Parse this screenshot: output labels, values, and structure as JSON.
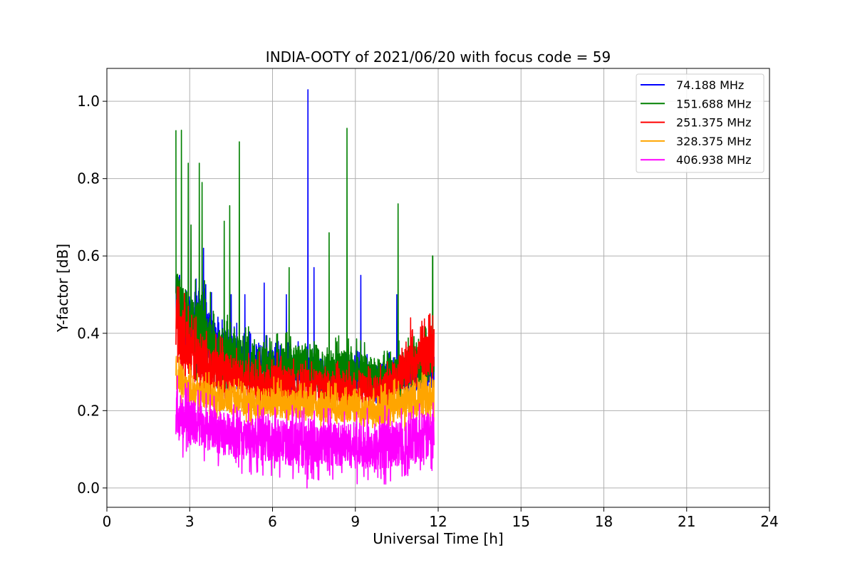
{
  "chart_data": {
    "type": "line",
    "title": "INDIA-OOTY of 2021/06/20 with focus code = 59",
    "xlabel": "Universal Time [h]",
    "ylabel": "Y-factor [dB]",
    "xlim": [
      0,
      24
    ],
    "ylim": [
      -0.05,
      1.085
    ],
    "xticks": [
      0,
      3,
      6,
      9,
      12,
      15,
      18,
      21,
      24
    ],
    "xtick_labels": [
      "0",
      "3",
      "6",
      "9",
      "12",
      "15",
      "18",
      "21",
      "24"
    ],
    "yticks": [
      0.0,
      0.2,
      0.4,
      0.6,
      0.8,
      1.0
    ],
    "ytick_labels": [
      "0.0",
      "0.2",
      "0.4",
      "0.6",
      "0.8",
      "1.0"
    ],
    "grid": true,
    "legend_position": "top-right",
    "x_range_data": [
      2.5,
      11.85
    ],
    "series": [
      {
        "name": " 74.188 MHz",
        "color": "#0000ff",
        "band": [
          [
            2.5,
            0.42,
            0.55
          ],
          [
            3.0,
            0.35,
            0.5
          ],
          [
            3.5,
            0.3,
            0.5
          ],
          [
            4.0,
            0.3,
            0.42
          ],
          [
            5.0,
            0.28,
            0.38
          ],
          [
            6.0,
            0.27,
            0.36
          ],
          [
            7.0,
            0.27,
            0.35
          ],
          [
            8.0,
            0.26,
            0.33
          ],
          [
            9.0,
            0.25,
            0.33
          ],
          [
            10.0,
            0.24,
            0.32
          ],
          [
            11.0,
            0.25,
            0.34
          ],
          [
            11.8,
            0.26,
            0.36
          ]
        ],
        "spikes": [
          [
            3.5,
            0.62
          ],
          [
            4.5,
            0.5
          ],
          [
            5.0,
            0.5
          ],
          [
            5.7,
            0.53
          ],
          [
            6.5,
            0.5
          ],
          [
            7.28,
            1.03
          ],
          [
            7.5,
            0.57
          ],
          [
            9.2,
            0.55
          ],
          [
            10.5,
            0.5
          ]
        ]
      },
      {
        "name": "151.688 MHz",
        "color": "#008000",
        "band": [
          [
            2.5,
            0.45,
            0.56
          ],
          [
            3.0,
            0.36,
            0.5
          ],
          [
            3.5,
            0.3,
            0.48
          ],
          [
            4.0,
            0.28,
            0.42
          ],
          [
            5.0,
            0.26,
            0.38
          ],
          [
            6.0,
            0.25,
            0.36
          ],
          [
            7.0,
            0.26,
            0.37
          ],
          [
            8.0,
            0.25,
            0.36
          ],
          [
            9.0,
            0.24,
            0.35
          ],
          [
            10.0,
            0.24,
            0.33
          ],
          [
            11.0,
            0.26,
            0.36
          ],
          [
            11.8,
            0.28,
            0.4
          ]
        ],
        "spikes": [
          [
            2.5,
            0.925
          ],
          [
            2.7,
            0.925
          ],
          [
            2.95,
            0.84
          ],
          [
            3.05,
            0.68
          ],
          [
            3.35,
            0.84
          ],
          [
            3.45,
            0.79
          ],
          [
            4.25,
            0.69
          ],
          [
            4.45,
            0.73
          ],
          [
            4.8,
            0.895
          ],
          [
            6.6,
            0.57
          ],
          [
            8.05,
            0.66
          ],
          [
            8.7,
            0.93
          ],
          [
            10.55,
            0.735
          ],
          [
            11.8,
            0.6
          ]
        ]
      },
      {
        "name": "251.375 MHz",
        "color": "#ff0000",
        "band": [
          [
            2.5,
            0.33,
            0.5
          ],
          [
            3.0,
            0.28,
            0.42
          ],
          [
            3.5,
            0.26,
            0.38
          ],
          [
            4.0,
            0.25,
            0.36
          ],
          [
            5.0,
            0.24,
            0.33
          ],
          [
            6.0,
            0.23,
            0.32
          ],
          [
            7.0,
            0.22,
            0.31
          ],
          [
            8.0,
            0.22,
            0.3
          ],
          [
            9.0,
            0.21,
            0.3
          ],
          [
            10.0,
            0.21,
            0.29
          ],
          [
            10.8,
            0.25,
            0.36
          ],
          [
            11.8,
            0.3,
            0.42
          ]
        ],
        "spikes": [
          [
            2.55,
            0.52
          ],
          [
            11.0,
            0.44
          ],
          [
            11.7,
            0.45
          ]
        ]
      },
      {
        "name": "328.375 MHz",
        "color": "#ffa500",
        "band": [
          [
            2.5,
            0.25,
            0.33
          ],
          [
            3.0,
            0.22,
            0.3
          ],
          [
            3.5,
            0.21,
            0.28
          ],
          [
            4.0,
            0.2,
            0.27
          ],
          [
            5.0,
            0.19,
            0.26
          ],
          [
            6.0,
            0.18,
            0.26
          ],
          [
            7.0,
            0.18,
            0.25
          ],
          [
            8.0,
            0.17,
            0.25
          ],
          [
            9.0,
            0.17,
            0.24
          ],
          [
            10.0,
            0.16,
            0.24
          ],
          [
            11.0,
            0.18,
            0.27
          ],
          [
            11.8,
            0.2,
            0.3
          ]
        ],
        "spikes": [
          [
            3.0,
            0.32
          ],
          [
            8.3,
            0.27
          ]
        ]
      },
      {
        "name": "406.938 MHz",
        "color": "#ff00ff",
        "band": [
          [
            2.5,
            0.13,
            0.25
          ],
          [
            3.0,
            0.11,
            0.23
          ],
          [
            3.5,
            0.1,
            0.21
          ],
          [
            4.0,
            0.09,
            0.2
          ],
          [
            5.0,
            0.07,
            0.18
          ],
          [
            6.0,
            0.07,
            0.18
          ],
          [
            7.0,
            0.05,
            0.17
          ],
          [
            8.0,
            0.06,
            0.17
          ],
          [
            9.0,
            0.05,
            0.17
          ],
          [
            10.0,
            0.05,
            0.17
          ],
          [
            11.0,
            0.06,
            0.18
          ],
          [
            11.8,
            0.07,
            0.2
          ]
        ],
        "spikes": [
          [
            2.55,
            0.29
          ],
          [
            3.4,
            0.25
          ],
          [
            7.25,
            0.0
          ],
          [
            10.1,
            0.01
          ]
        ]
      }
    ]
  }
}
